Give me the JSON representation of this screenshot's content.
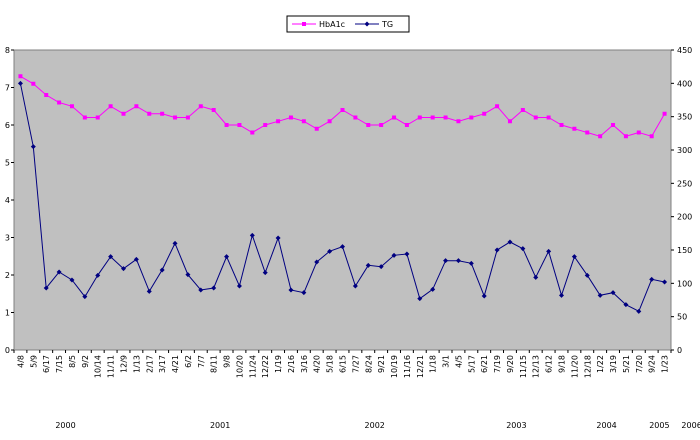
{
  "chart_data": {
    "type": "line",
    "title": "",
    "xlabel": "",
    "ylabel": "",
    "y2label": "",
    "categories": [
      "4/8",
      "5/9",
      "6/17",
      "7/15",
      "8/5",
      "9/2",
      "10/14",
      "11/11",
      "12/9",
      "1/13",
      "2/17",
      "3/17",
      "4/21",
      "6/2",
      "7/7",
      "8/11",
      "9/8",
      "10/20",
      "11/24",
      "12/22",
      "1/19",
      "2/16",
      "3/16",
      "4/20",
      "5/18",
      "6/15",
      "7/27",
      "8/24",
      "9/21",
      "10/19",
      "11/16",
      "12/21",
      "1/18",
      "3/1",
      "4/5",
      "5/17",
      "6/21",
      "7/19",
      "9/20",
      "11/15",
      "12/13",
      "6/12",
      "9/18",
      "11/20",
      "12/18",
      "1/22",
      "3/19",
      "5/21",
      "7/20",
      "9/24",
      "1/23"
    ],
    "years": [
      {
        "label": "2000",
        "category_index": 4
      },
      {
        "label": "2001",
        "category_index": 16
      },
      {
        "label": "2002",
        "category_index": 28
      },
      {
        "label": "2003",
        "category_index": 39
      },
      {
        "label": "2004",
        "category_index": 46
      },
      {
        "label": "2005",
        "category_index": 50.1
      },
      {
        "label": "2006",
        "category_index": 52.6
      }
    ],
    "ylim": [
      0,
      8
    ],
    "yticks": [
      0,
      1,
      2,
      3,
      4,
      5,
      6,
      7,
      8
    ],
    "y2lim": [
      0,
      450
    ],
    "y2ticks": [
      0,
      50,
      100,
      150,
      200,
      250,
      300,
      350,
      400,
      450
    ],
    "grid": false,
    "plot_background": "#c0c0c0",
    "legend_position": "top-center",
    "series": [
      {
        "name": "HbA1c",
        "axis": "left",
        "color": "#ff00ff",
        "marker": "square",
        "values": [
          7.3,
          7.1,
          6.8,
          6.6,
          6.5,
          6.2,
          6.2,
          6.5,
          6.3,
          6.5,
          6.3,
          6.3,
          6.2,
          6.2,
          6.5,
          6.4,
          6.0,
          6.0,
          5.8,
          6.0,
          6.1,
          6.2,
          6.1,
          5.9,
          6.1,
          6.4,
          6.2,
          6.0,
          6.0,
          6.2,
          6.0,
          6.2,
          6.2,
          6.2,
          6.1,
          6.2,
          6.3,
          6.5,
          6.1,
          6.4,
          6.2,
          6.2,
          6.0,
          5.9,
          5.8,
          5.7,
          6.0,
          5.7,
          5.8,
          5.7,
          6.3
        ]
      },
      {
        "name": "TG",
        "axis": "right",
        "color": "#000080",
        "marker": "diamond",
        "values": [
          400,
          305,
          93,
          117,
          105,
          80,
          112,
          140,
          122,
          136,
          88,
          120,
          160,
          113,
          90,
          93,
          140,
          96,
          172,
          116,
          168,
          90,
          86,
          132,
          148,
          155,
          96,
          127,
          125,
          142,
          144,
          77,
          91,
          134,
          134,
          130,
          81,
          150,
          162,
          152,
          109,
          148,
          82,
          140,
          112,
          82,
          86,
          68,
          58,
          106,
          102
        ]
      }
    ]
  }
}
